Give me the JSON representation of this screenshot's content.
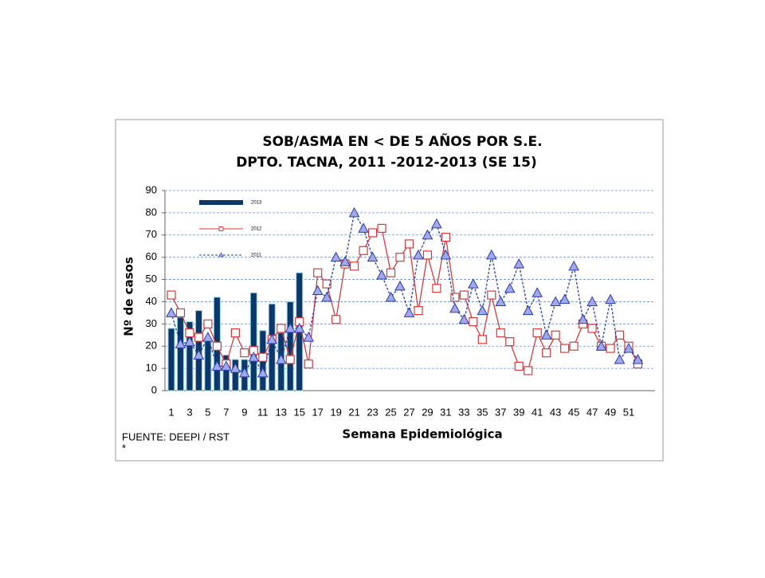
{
  "chart_data": {
    "type": "bar",
    "title": "SOB/ASMA EN < DE 5 AÑOS POR S.E.",
    "subtitle": "DPTO. TACNA, 2011 -2012-2013 (SE 15)",
    "x_label": "Semana Epidemiológica",
    "y_label": "Nº de casos",
    "source": "FUENTE: DEEPI / RST",
    "note": "*",
    "categories": [
      "1",
      null,
      "3",
      null,
      "5",
      null,
      "7",
      null,
      "9",
      null,
      "11",
      null,
      "13",
      null,
      "15",
      null,
      "17",
      null,
      "19",
      null,
      "21",
      null,
      "23",
      null,
      "25",
      null,
      "27",
      null,
      "29",
      null,
      "31",
      null,
      "33",
      null,
      "35",
      null,
      "37",
      null,
      "39",
      null,
      "41",
      null,
      "43",
      null,
      "45",
      null,
      "47",
      null,
      "49",
      null,
      "51",
      null
    ],
    "ylim": [
      0,
      90
    ],
    "yticks": [
      0,
      10,
      20,
      30,
      40,
      50,
      60,
      70,
      80,
      90
    ],
    "grid": true,
    "legend": "upper left",
    "series": [
      {
        "name": "2013",
        "type": "bar",
        "color": "#0d3766",
        "values": [
          28,
          33,
          31,
          36,
          23,
          42,
          16,
          14,
          14,
          44,
          27,
          39,
          26,
          40,
          53,
          null,
          null,
          null,
          null,
          null,
          null,
          null,
          null,
          null,
          null,
          null,
          null,
          null,
          null,
          null,
          null,
          null,
          null,
          null,
          null,
          null,
          null,
          null,
          null,
          null,
          null,
          null,
          null,
          null,
          null,
          null,
          null,
          null,
          null,
          null,
          null,
          null
        ]
      },
      {
        "name": "2012",
        "type": "line",
        "color": "#d9383a",
        "marker": "square",
        "line_style": "solid",
        "values": [
          43,
          35,
          26,
          24,
          30,
          20,
          12,
          26,
          17,
          18,
          15,
          23,
          28,
          14,
          31,
          12,
          53,
          48,
          32,
          57,
          56,
          63,
          71,
          73,
          53,
          60,
          66,
          36,
          61,
          46,
          69,
          42,
          43,
          31,
          23,
          43,
          26,
          22,
          11,
          9,
          26,
          17,
          25,
          19,
          20,
          30,
          28,
          20,
          19,
          25,
          20,
          12
        ]
      },
      {
        "name": "2011",
        "type": "line",
        "color": "#2a3db0",
        "marker": "triangle",
        "line_style": "dashed",
        "values": [
          35,
          21,
          22,
          16,
          24,
          11,
          11,
          10,
          8,
          15,
          8,
          23,
          14,
          28,
          28,
          24,
          45,
          42,
          60,
          58,
          80,
          73,
          60,
          52,
          42,
          47,
          35,
          61,
          70,
          75,
          61,
          37,
          32,
          48,
          36,
          61,
          40,
          46,
          57,
          36,
          44,
          25,
          40,
          41,
          56,
          32,
          40,
          20,
          41,
          14,
          19,
          14
        ]
      }
    ]
  }
}
